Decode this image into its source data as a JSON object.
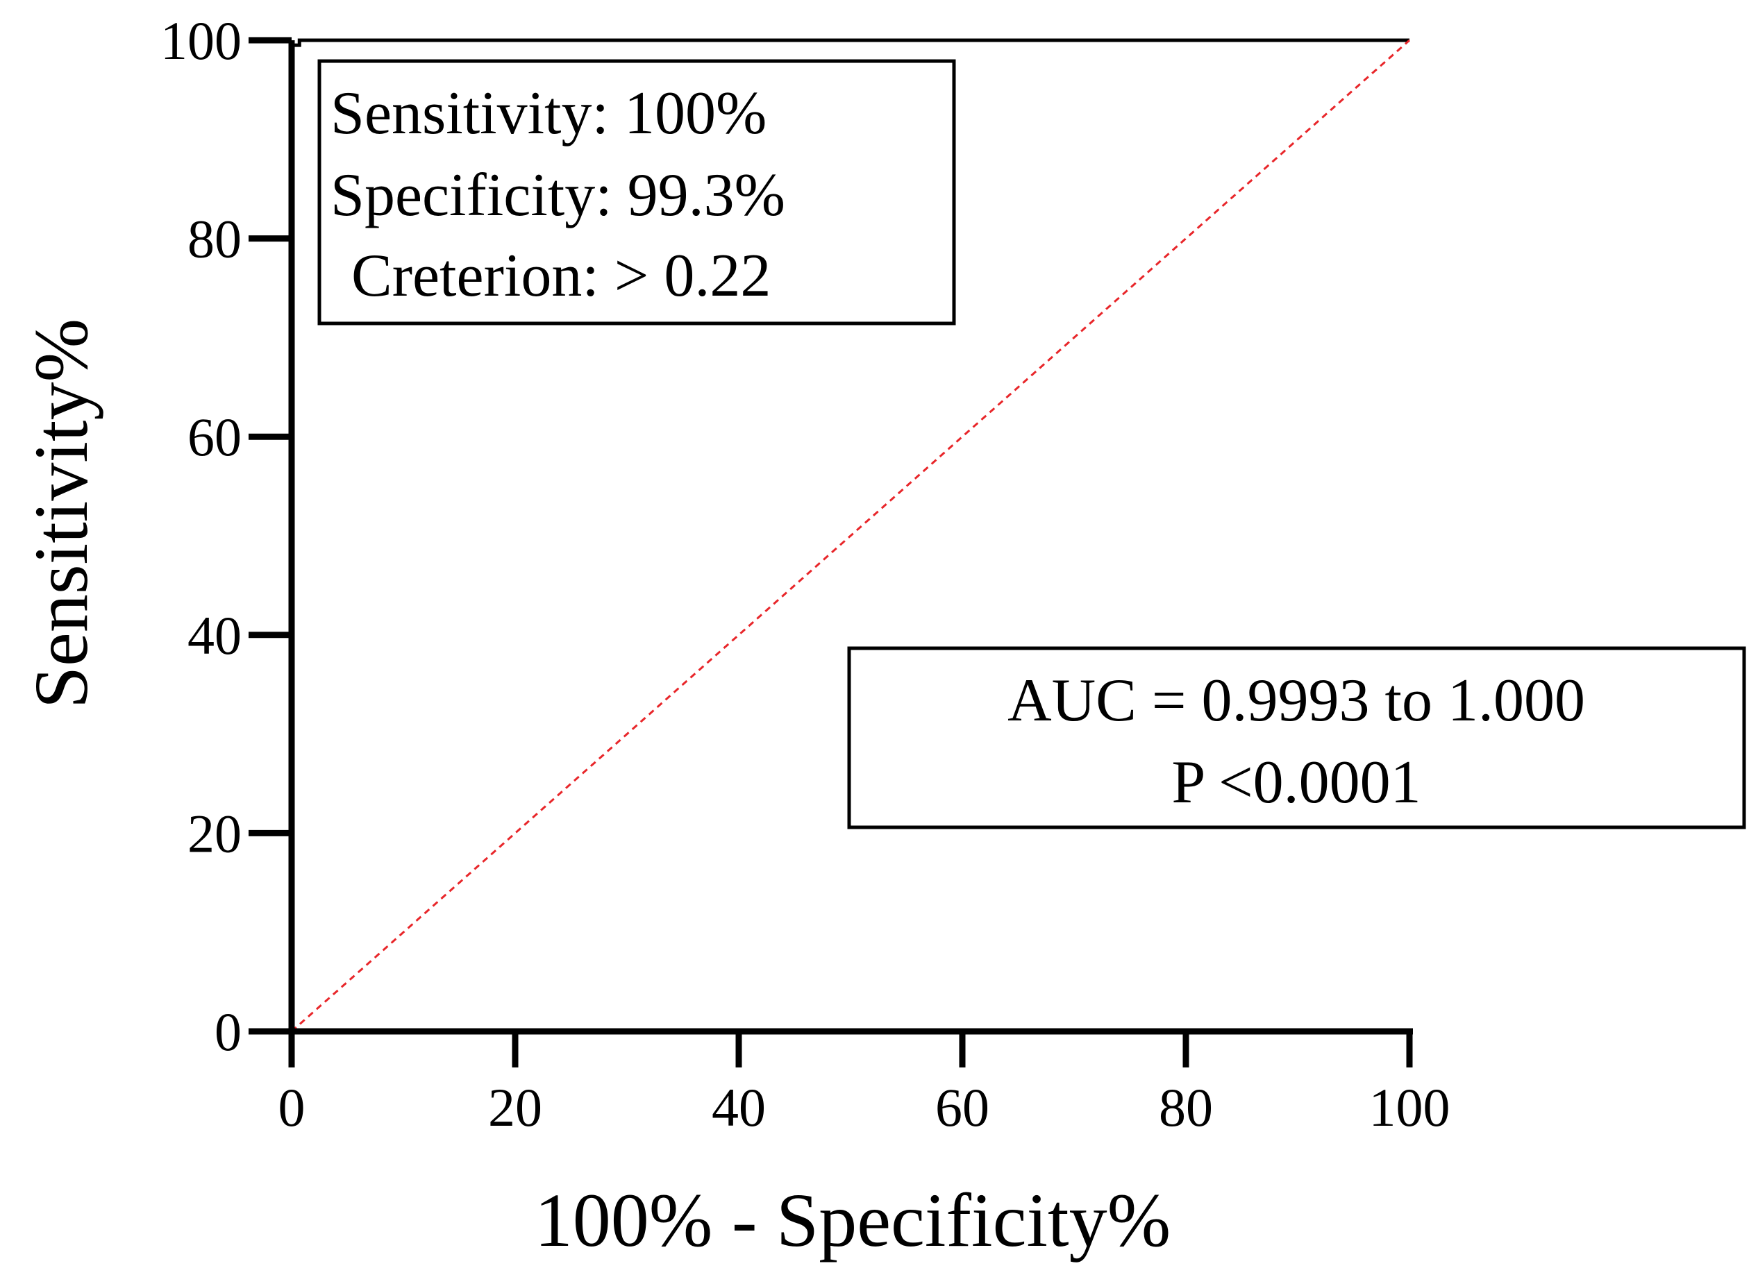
{
  "chart_data": {
    "type": "line",
    "xlabel": "100% - Specificity%",
    "ylabel": "Sensitivity%",
    "xlim": [
      0,
      100
    ],
    "ylim": [
      0,
      100
    ],
    "x_ticks": [
      "0",
      "20",
      "40",
      "60",
      "80",
      "100"
    ],
    "y_ticks": [
      "0",
      "20",
      "40",
      "60",
      "80",
      "100"
    ],
    "grid": false,
    "series": [
      {
        "role": "roc-curve",
        "color": "#000000",
        "style": "solid",
        "x": [
          0,
          0,
          0.7,
          0.7,
          100
        ],
        "y": [
          0,
          99.5,
          99.5,
          100,
          100
        ]
      },
      {
        "role": "reference-diagonal",
        "color": "#e8262a",
        "style": "dashed",
        "x": [
          0,
          100
        ],
        "y": [
          0,
          100
        ]
      }
    ],
    "annotations": {
      "stats_box": {
        "line1": "Sensitivity: 100%",
        "line2": "Specificity: 99.3%",
        "line3": "Creterion: > 0.22"
      },
      "auc_box": {
        "line1": "AUC = 0.9993 to 1.000",
        "line2": "P <0.0001"
      }
    }
  }
}
